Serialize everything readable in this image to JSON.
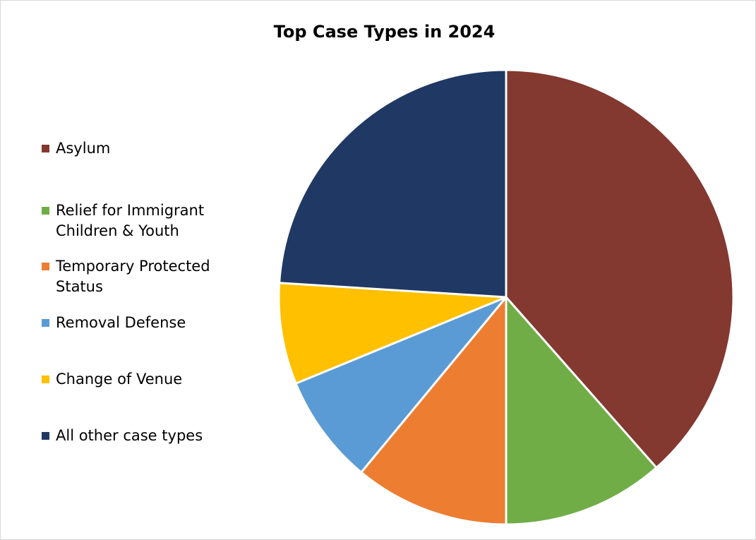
{
  "chart_data": {
    "type": "pie",
    "title": "Top Case Types in 2024",
    "legend_position": "left",
    "slices": [
      {
        "label": "Asylum",
        "value": 38.5,
        "color": "#833830"
      },
      {
        "label": "Relief for Immigrant Children & Youth",
        "value": 11.5,
        "color": "#70ad47"
      },
      {
        "label": "Temporary Protected Status",
        "value": 11.0,
        "color": "#ed7d31"
      },
      {
        "label": "Removal Defense",
        "value": 7.8,
        "color": "#5b9bd5"
      },
      {
        "label": "Change of Venue",
        "value": 7.2,
        "color": "#ffc000"
      },
      {
        "label": "All other case types",
        "value": 24.0,
        "color": "#203864"
      }
    ]
  }
}
